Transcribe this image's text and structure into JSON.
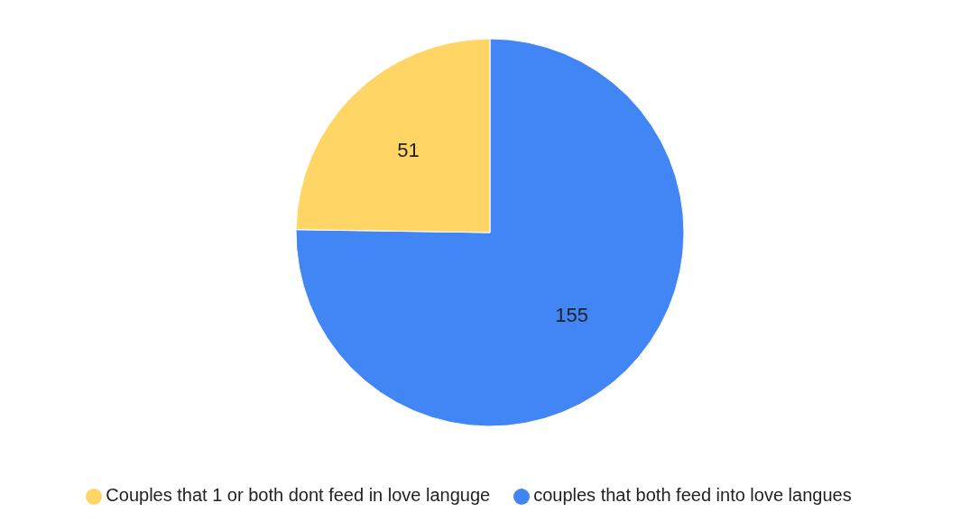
{
  "chart_data": {
    "type": "pie",
    "categories": [
      "couples that both feed into love langues",
      "Couples that 1 or both dont feed in love languge"
    ],
    "values": [
      155,
      51
    ],
    "colors": [
      "#4285f4",
      "#ffd666"
    ],
    "data_labels": true,
    "legend": "bottom"
  }
}
